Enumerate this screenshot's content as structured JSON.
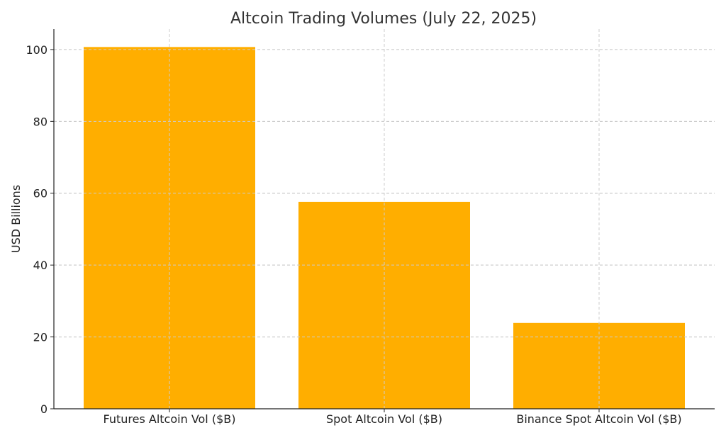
{
  "chart_data": {
    "type": "bar",
    "title": "Altcoin Trading Volumes (July 22, 2025)",
    "xlabel": "",
    "ylabel": "USD Billions",
    "categories": [
      "Futures Altcoin Vol ($B)",
      "Spot Altcoin Vol ($B)",
      "Binance Spot Altcoin Vol ($B)"
    ],
    "values": [
      100.7,
      57.6,
      23.9
    ],
    "ylim": [
      0,
      105.7
    ],
    "yticks": [
      0,
      20,
      40,
      60,
      80,
      100
    ],
    "grid": true,
    "colors": {
      "bar": "#FFAE00",
      "grid": "#cccccc",
      "axis": "#222222"
    }
  }
}
